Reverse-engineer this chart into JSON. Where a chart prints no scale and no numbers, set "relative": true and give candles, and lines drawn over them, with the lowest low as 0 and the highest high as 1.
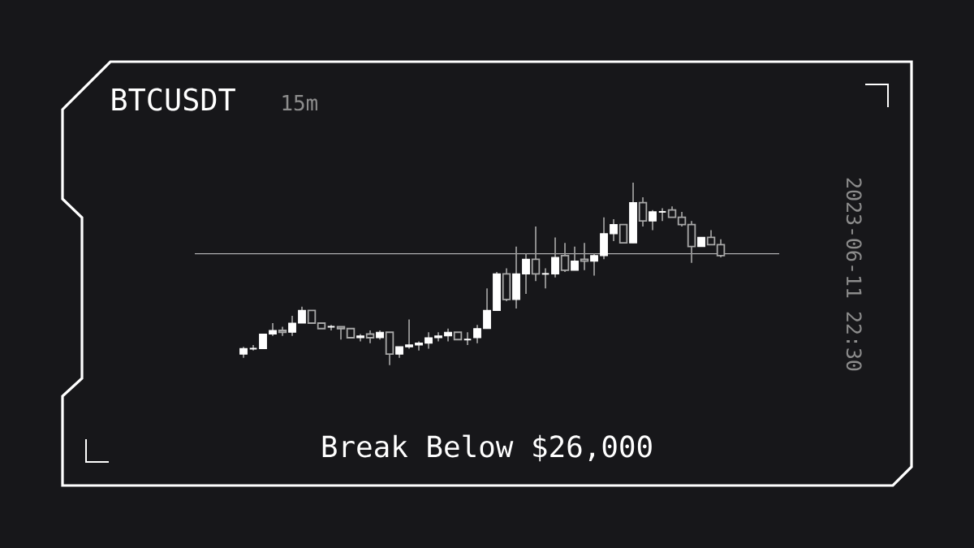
{
  "chart_data": {
    "type": "candlestick",
    "title": "BTCUSDT",
    "subtitle": "15m",
    "relative": true,
    "annotations": [
      "2023-06-11 22:30",
      "Break Below $26,000"
    ],
    "ref_lines": [
      {
        "axis": "y",
        "value": 0.61
      }
    ],
    "categories": [
      null,
      null,
      null,
      null,
      null,
      null,
      null,
      null,
      null,
      null,
      null,
      null,
      null,
      null,
      null,
      null,
      null,
      null,
      null,
      null,
      null,
      null,
      null,
      null,
      null,
      null,
      null,
      null,
      null,
      null,
      null,
      null,
      null,
      null,
      null,
      null,
      null,
      null,
      null,
      null,
      null,
      null,
      null,
      null,
      null,
      null,
      null,
      null,
      null,
      null
    ],
    "ohlc": [
      [
        0.06,
        0.1,
        0.04,
        0.09
      ],
      [
        0.09,
        0.11,
        0.08,
        0.09
      ],
      [
        0.09,
        0.17,
        0.09,
        0.17
      ],
      [
        0.17,
        0.23,
        0.16,
        0.19
      ],
      [
        0.19,
        0.21,
        0.16,
        0.18
      ],
      [
        0.18,
        0.27,
        0.16,
        0.23
      ],
      [
        0.23,
        0.32,
        0.23,
        0.3
      ],
      [
        0.3,
        0.3,
        0.23,
        0.23
      ],
      [
        0.23,
        0.23,
        0.2,
        0.2
      ],
      [
        0.21,
        0.22,
        0.19,
        0.21
      ],
      [
        0.21,
        0.21,
        0.14,
        0.2
      ],
      [
        0.2,
        0.2,
        0.15,
        0.15
      ],
      [
        0.15,
        0.17,
        0.13,
        0.16
      ],
      [
        0.17,
        0.19,
        0.12,
        0.15
      ],
      [
        0.15,
        0.19,
        0.14,
        0.18
      ],
      [
        0.18,
        0.18,
        0.0,
        0.06
      ],
      [
        0.06,
        0.1,
        0.04,
        0.1
      ],
      [
        0.1,
        0.25,
        0.09,
        0.11
      ],
      [
        0.11,
        0.13,
        0.08,
        0.12
      ],
      [
        0.12,
        0.18,
        0.09,
        0.15
      ],
      [
        0.15,
        0.18,
        0.13,
        0.16
      ],
      [
        0.16,
        0.2,
        0.13,
        0.18
      ],
      [
        0.18,
        0.18,
        0.14,
        0.14
      ],
      [
        0.14,
        0.18,
        0.11,
        0.14
      ],
      [
        0.15,
        0.22,
        0.12,
        0.2
      ],
      [
        0.2,
        0.42,
        0.2,
        0.3
      ],
      [
        0.3,
        0.51,
        0.3,
        0.5
      ],
      [
        0.5,
        0.53,
        0.35,
        0.36
      ],
      [
        0.36,
        0.65,
        0.31,
        0.5
      ],
      [
        0.5,
        0.61,
        0.39,
        0.58
      ],
      [
        0.58,
        0.76,
        0.46,
        0.5
      ],
      [
        0.5,
        0.53,
        0.42,
        0.5
      ],
      [
        0.5,
        0.7,
        0.48,
        0.59
      ],
      [
        0.6,
        0.67,
        0.51,
        0.52
      ],
      [
        0.52,
        0.65,
        0.52,
        0.57
      ],
      [
        0.58,
        0.67,
        0.52,
        0.57
      ],
      [
        0.57,
        0.61,
        0.49,
        0.6
      ],
      [
        0.6,
        0.81,
        0.58,
        0.72
      ],
      [
        0.72,
        0.8,
        0.68,
        0.77
      ],
      [
        0.77,
        0.77,
        0.67,
        0.67
      ],
      [
        0.67,
        1.0,
        0.67,
        0.89
      ],
      [
        0.89,
        0.92,
        0.76,
        0.79
      ],
      [
        0.79,
        0.85,
        0.74,
        0.84
      ],
      [
        0.84,
        0.86,
        0.79,
        0.84
      ],
      [
        0.85,
        0.87,
        0.81,
        0.81
      ],
      [
        0.81,
        0.84,
        0.76,
        0.77
      ],
      [
        0.77,
        0.79,
        0.56,
        0.65
      ],
      [
        0.65,
        0.7,
        0.65,
        0.7
      ],
      [
        0.7,
        0.74,
        0.66,
        0.66
      ],
      [
        0.66,
        0.69,
        0.59,
        0.6
      ]
    ]
  }
}
